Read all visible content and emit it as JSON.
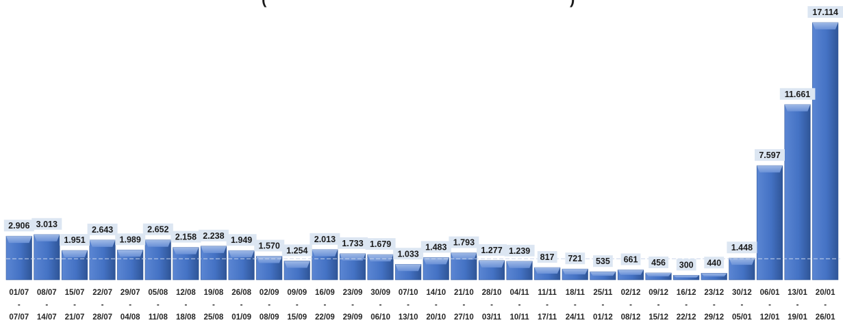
{
  "chart_data": {
    "type": "bar",
    "title_fragments": [
      "(",
      ")"
    ],
    "bar_color": "#4472C4",
    "label_bg_color": "#DCE6F2",
    "reference_line": 1400,
    "ylim": [
      0,
      18000
    ],
    "grid": false,
    "legend": "none",
    "categories": [
      {
        "start": "01/07",
        "sep": "-",
        "end": "07/07"
      },
      {
        "start": "08/07",
        "sep": "-",
        "end": "14/07"
      },
      {
        "start": "15/07",
        "sep": "-",
        "end": "21/07"
      },
      {
        "start": "22/07",
        "sep": "-",
        "end": "28/07"
      },
      {
        "start": "29/07",
        "sep": "-",
        "end": "04/08"
      },
      {
        "start": "05/08",
        "sep": "-",
        "end": "11/08"
      },
      {
        "start": "12/08",
        "sep": "-",
        "end": "18/08"
      },
      {
        "start": "19/08",
        "sep": "-",
        "end": "25/08"
      },
      {
        "start": "26/08",
        "sep": "-",
        "end": "01/09"
      },
      {
        "start": "02/09",
        "sep": "-",
        "end": "08/09"
      },
      {
        "start": "09/09",
        "sep": "-",
        "end": "15/09"
      },
      {
        "start": "16/09",
        "sep": "-",
        "end": "22/09"
      },
      {
        "start": "23/09",
        "sep": "-",
        "end": "29/09"
      },
      {
        "start": "30/09",
        "sep": "-",
        "end": "06/10"
      },
      {
        "start": "07/10",
        "sep": "-",
        "end": "13/10"
      },
      {
        "start": "14/10",
        "sep": "-",
        "end": "20/10"
      },
      {
        "start": "21/10",
        "sep": "-",
        "end": "27/10"
      },
      {
        "start": "28/10",
        "sep": "-",
        "end": "03/11"
      },
      {
        "start": "04/11",
        "sep": "-",
        "end": "10/11"
      },
      {
        "start": "11/11",
        "sep": "-",
        "end": "17/11"
      },
      {
        "start": "18/11",
        "sep": "-",
        "end": "24/11"
      },
      {
        "start": "25/11",
        "sep": "-",
        "end": "01/12"
      },
      {
        "start": "02/12",
        "sep": "-",
        "end": "08/12"
      },
      {
        "start": "09/12",
        "sep": "-",
        "end": "15/12"
      },
      {
        "start": "16/12",
        "sep": "-",
        "end": "22/12"
      },
      {
        "start": "23/12",
        "sep": "-",
        "end": "29/12"
      },
      {
        "start": "30/12",
        "sep": "-",
        "end": "05/01"
      },
      {
        "start": "06/01",
        "sep": "-",
        "end": "12/01"
      },
      {
        "start": "13/01",
        "sep": "-",
        "end": "19/01"
      },
      {
        "start": "20/01",
        "sep": "-",
        "end": "26/01"
      }
    ],
    "values": [
      2906,
      3013,
      1951,
      2643,
      1989,
      2652,
      2158,
      2238,
      1949,
      1570,
      1254,
      2013,
      1733,
      1679,
      1033,
      1483,
      1793,
      1277,
      1239,
      817,
      721,
      535,
      661,
      456,
      300,
      440,
      1448,
      7597,
      11661,
      17114
    ],
    "value_labels": [
      "2.906",
      "3.013",
      "1.951",
      "2.643",
      "1.989",
      "2.652",
      "2.158",
      "2.238",
      "1.949",
      "1.570",
      "1.254",
      "2.013",
      "1.733",
      "1.679",
      "1.033",
      "1.483",
      "1.793",
      "1.277",
      "1.239",
      "817",
      "721",
      "535",
      "661",
      "456",
      "300",
      "440",
      "1.448",
      "7.597",
      "11.661",
      "17.114"
    ]
  }
}
